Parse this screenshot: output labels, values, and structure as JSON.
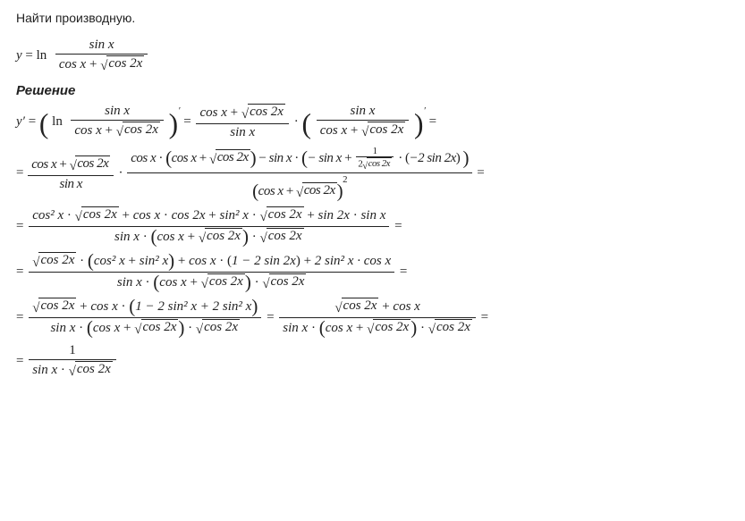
{
  "task_label": "Найти производную.",
  "solution_label": "Решение",
  "y_eq": "y",
  "eq_sign": " = ",
  "ln": "ln",
  "sin_x": "sin x",
  "cos_x": "cos x",
  "cos_2x": "cos 2x",
  "sin_2x": "sin 2x",
  "plus": " + ",
  "minus": " − ",
  "dot": " · ",
  "prime": "′",
  "yprime": "y′",
  "line2_lead": " = ",
  "paren_l": "(",
  "paren_r": ")",
  "minus_sin_x": "− sin x",
  "minus_2sin2x": "−2 sin 2x",
  "one": "1",
  "two": "2",
  "cos2_x": "cos² x",
  "sin2_x": "sin² x",
  "one_minus_2sin2x": "1 − 2 sin 2x",
  "two_sin2x_cosx": "2 sin² x · cos x",
  "one_minus_2sin2x_plus_2sin2x": "1 − 2 sin² x + 2 sin² x",
  "final_num": "1"
}
